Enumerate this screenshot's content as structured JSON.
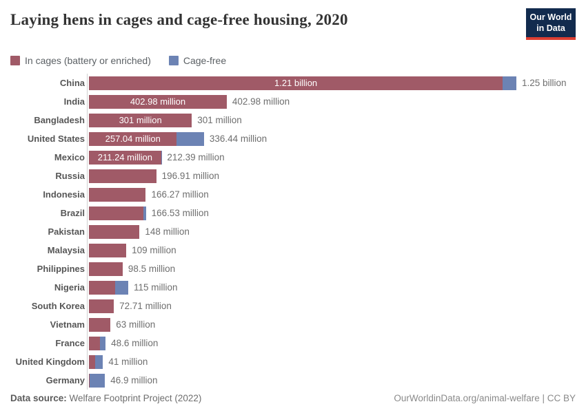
{
  "header": {
    "title": "Laying hens in cages and cage-free housing, 2020"
  },
  "logo": {
    "line1": "Our World",
    "line2": "in Data"
  },
  "legend": {
    "cages_label": "In cages (battery or enriched)",
    "cage_free_label": "Cage-free"
  },
  "colors": {
    "cages": "#a05a67",
    "cage_free": "#6c83b4",
    "logo_bg": "#122b4e",
    "logo_accent": "#dc3e32"
  },
  "chart_data": {
    "type": "bar",
    "orientation": "horizontal",
    "stacked": true,
    "title": "Laying hens in cages and cage-free housing, 2020",
    "unit": "laying hens",
    "xlim_millions": [
      0,
      1250
    ],
    "grid": false,
    "legend_position": "top",
    "series_names": [
      "In cages (battery or enriched)",
      "Cage-free"
    ],
    "rows": [
      {
        "country": "China",
        "cages_millions": 1210,
        "cage_free_millions": 40,
        "inside_label": "1.21 billion",
        "total_label": "1.25 billion"
      },
      {
        "country": "India",
        "cages_millions": 402.98,
        "cage_free_millions": 0,
        "inside_label": "402.98 million",
        "total_label": "402.98 million"
      },
      {
        "country": "Bangladesh",
        "cages_millions": 301,
        "cage_free_millions": 0,
        "inside_label": "301 million",
        "total_label": "301 million"
      },
      {
        "country": "United States",
        "cages_millions": 257.04,
        "cage_free_millions": 79.4,
        "inside_label": "257.04 million",
        "total_label": "336.44 million"
      },
      {
        "country": "Mexico",
        "cages_millions": 211.24,
        "cage_free_millions": 1.15,
        "inside_label": "211.24 million",
        "total_label": "212.39 million"
      },
      {
        "country": "Russia",
        "cages_millions": 196.91,
        "cage_free_millions": 0,
        "inside_label": "",
        "total_label": "196.91 million"
      },
      {
        "country": "Indonesia",
        "cages_millions": 166.27,
        "cage_free_millions": 0,
        "inside_label": "",
        "total_label": "166.27 million"
      },
      {
        "country": "Brazil",
        "cages_millions": 159.5,
        "cage_free_millions": 7.03,
        "inside_label": "",
        "total_label": "166.53 million"
      },
      {
        "country": "Pakistan",
        "cages_millions": 148,
        "cage_free_millions": 0,
        "inside_label": "",
        "total_label": "148 million"
      },
      {
        "country": "Malaysia",
        "cages_millions": 109,
        "cage_free_millions": 0,
        "inside_label": "",
        "total_label": "109 million"
      },
      {
        "country": "Philippines",
        "cages_millions": 98.5,
        "cage_free_millions": 0,
        "inside_label": "",
        "total_label": "98.5 million"
      },
      {
        "country": "Nigeria",
        "cages_millions": 76,
        "cage_free_millions": 39,
        "inside_label": "",
        "total_label": "115 million"
      },
      {
        "country": "South Korea",
        "cages_millions": 72.71,
        "cage_free_millions": 0,
        "inside_label": "",
        "total_label": "72.71 million"
      },
      {
        "country": "Vietnam",
        "cages_millions": 63,
        "cage_free_millions": 0,
        "inside_label": "",
        "total_label": "63 million"
      },
      {
        "country": "France",
        "cages_millions": 31.6,
        "cage_free_millions": 17,
        "inside_label": "",
        "total_label": "48.6 million"
      },
      {
        "country": "United Kingdom",
        "cages_millions": 18,
        "cage_free_millions": 23,
        "inside_label": "",
        "total_label": "41 million"
      },
      {
        "country": "Germany",
        "cages_millions": 1.5,
        "cage_free_millions": 45.4,
        "inside_label": "",
        "total_label": "46.9 million"
      }
    ]
  },
  "footer": {
    "source_prefix": "Data source:",
    "source": " Welfare Footprint Project (2022)",
    "credit": "OurWorldinData.org/animal-welfare | CC BY"
  }
}
